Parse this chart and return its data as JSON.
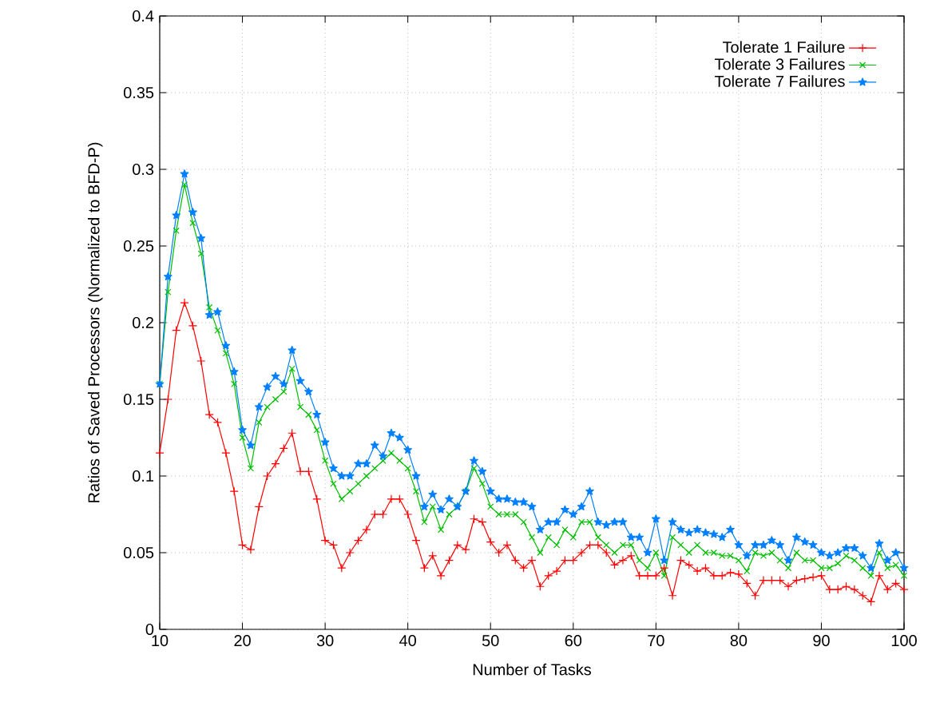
{
  "chart_data": {
    "type": "line",
    "xlabel": "Number of Tasks",
    "ylabel": "Ratios of Saved Processors (Normalized to BFD-P)",
    "x": [
      10,
      11,
      12,
      13,
      14,
      15,
      16,
      17,
      18,
      19,
      20,
      21,
      22,
      23,
      24,
      25,
      26,
      27,
      28,
      29,
      30,
      31,
      32,
      33,
      34,
      35,
      36,
      37,
      38,
      39,
      40,
      41,
      42,
      43,
      44,
      45,
      46,
      47,
      48,
      49,
      50,
      51,
      52,
      53,
      54,
      55,
      56,
      57,
      58,
      59,
      60,
      61,
      62,
      63,
      64,
      65,
      66,
      67,
      68,
      69,
      70,
      71,
      72,
      73,
      74,
      75,
      76,
      77,
      78,
      79,
      80,
      81,
      82,
      83,
      84,
      85,
      86,
      87,
      88,
      89,
      90,
      91,
      92,
      93,
      94,
      95,
      96,
      97,
      98,
      99,
      100
    ],
    "series": [
      {
        "name": "Tolerate 1 Failure",
        "color": "#ff0000",
        "marker": "plus",
        "values": [
          0.115,
          0.15,
          0.195,
          0.213,
          0.198,
          0.175,
          0.14,
          0.135,
          0.115,
          0.09,
          0.055,
          0.052,
          0.08,
          0.1,
          0.108,
          0.118,
          0.128,
          0.103,
          0.103,
          0.085,
          0.058,
          0.055,
          0.04,
          0.05,
          0.058,
          0.065,
          0.075,
          0.075,
          0.085,
          0.085,
          0.075,
          0.058,
          0.04,
          0.048,
          0.035,
          0.045,
          0.055,
          0.052,
          0.072,
          0.07,
          0.057,
          0.05,
          0.055,
          0.045,
          0.04,
          0.045,
          0.028,
          0.035,
          0.038,
          0.045,
          0.045,
          0.05,
          0.055,
          0.055,
          0.05,
          0.042,
          0.045,
          0.048,
          0.035,
          0.035,
          0.035,
          0.04,
          0.022,
          0.045,
          0.042,
          0.038,
          0.04,
          0.035,
          0.035,
          0.037,
          0.036,
          0.03,
          0.022,
          0.032,
          0.032,
          0.032,
          0.028,
          0.032,
          0.033,
          0.034,
          0.035,
          0.026,
          0.026,
          0.028,
          0.026,
          0.022,
          0.018,
          0.035,
          0.026,
          0.03,
          0.026
        ]
      },
      {
        "name": "Tolerate 3 Failures",
        "color": "#00c000",
        "marker": "cross",
        "values": [
          0.16,
          0.22,
          0.26,
          0.29,
          0.265,
          0.245,
          0.21,
          0.195,
          0.18,
          0.16,
          0.125,
          0.105,
          0.135,
          0.145,
          0.15,
          0.155,
          0.17,
          0.145,
          0.14,
          0.13,
          0.11,
          0.095,
          0.085,
          0.09,
          0.095,
          0.1,
          0.105,
          0.11,
          0.115,
          0.11,
          0.105,
          0.09,
          0.07,
          0.08,
          0.065,
          0.075,
          0.08,
          0.09,
          0.105,
          0.095,
          0.08,
          0.075,
          0.075,
          0.075,
          0.07,
          0.06,
          0.05,
          0.06,
          0.055,
          0.065,
          0.06,
          0.07,
          0.07,
          0.06,
          0.055,
          0.05,
          0.055,
          0.055,
          0.045,
          0.04,
          0.05,
          0.035,
          0.06,
          0.055,
          0.05,
          0.055,
          0.05,
          0.05,
          0.048,
          0.048,
          0.045,
          0.038,
          0.05,
          0.048,
          0.05,
          0.045,
          0.04,
          0.05,
          0.045,
          0.045,
          0.04,
          0.04,
          0.043,
          0.048,
          0.045,
          0.04,
          0.035,
          0.05,
          0.04,
          0.042,
          0.035
        ]
      },
      {
        "name": "Tolerate 7 Failures",
        "color": "#0080ff",
        "marker": "star",
        "values": [
          0.16,
          0.23,
          0.27,
          0.297,
          0.272,
          0.255,
          0.205,
          0.207,
          0.185,
          0.168,
          0.13,
          0.12,
          0.145,
          0.158,
          0.165,
          0.16,
          0.182,
          0.162,
          0.155,
          0.14,
          0.122,
          0.105,
          0.1,
          0.1,
          0.108,
          0.108,
          0.12,
          0.113,
          0.128,
          0.125,
          0.117,
          0.1,
          0.08,
          0.088,
          0.078,
          0.085,
          0.08,
          0.09,
          0.11,
          0.103,
          0.09,
          0.085,
          0.085,
          0.083,
          0.083,
          0.08,
          0.065,
          0.07,
          0.07,
          0.078,
          0.075,
          0.08,
          0.09,
          0.07,
          0.068,
          0.07,
          0.07,
          0.06,
          0.06,
          0.05,
          0.072,
          0.045,
          0.07,
          0.065,
          0.063,
          0.065,
          0.063,
          0.062,
          0.06,
          0.065,
          0.055,
          0.048,
          0.055,
          0.055,
          0.058,
          0.055,
          0.045,
          0.06,
          0.057,
          0.055,
          0.05,
          0.048,
          0.05,
          0.053,
          0.053,
          0.048,
          0.04,
          0.056,
          0.045,
          0.05,
          0.04
        ]
      }
    ],
    "xlim": [
      10,
      100
    ],
    "xticks": [
      10,
      20,
      30,
      40,
      50,
      60,
      70,
      80,
      90,
      100
    ],
    "ylim": [
      0,
      0.4
    ],
    "yticks": [
      0,
      0.05,
      0.1,
      0.15,
      0.2,
      0.25,
      0.3,
      0.35,
      0.4
    ],
    "grid": true,
    "legend": "top right",
    "line_style": "solid"
  }
}
